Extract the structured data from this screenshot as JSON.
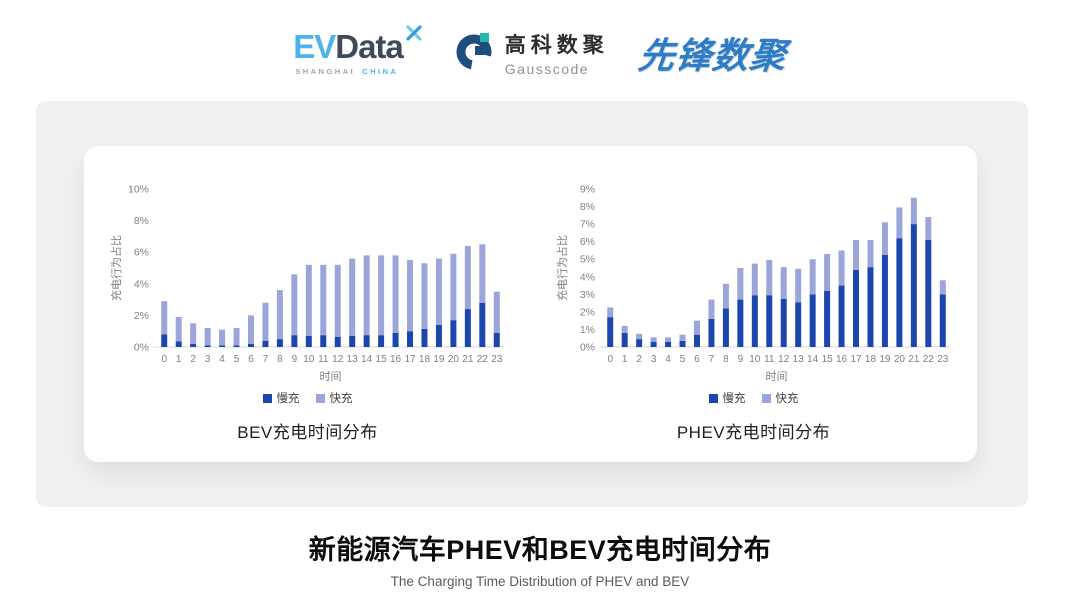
{
  "header": {
    "evdata": {
      "part1": "EV",
      "part2": "Data",
      "sub1": "SHANGHAI",
      "sub2": "CHINA"
    },
    "gausscode": {
      "cn": "高科数聚",
      "en": "Gausscode"
    },
    "pioneer": {
      "text": "先锋数聚"
    }
  },
  "chart_data": [
    {
      "type": "bar",
      "stacked": true,
      "title": "BEV充电时间分布",
      "xlabel": "时间",
      "ylabel": "充电行为占比",
      "ylim": [
        0,
        10
      ],
      "ytick_step": 2,
      "grid": false,
      "legend_position": "bottom",
      "categories": [
        "0",
        "1",
        "2",
        "3",
        "4",
        "5",
        "6",
        "7",
        "8",
        "9",
        "10",
        "11",
        "12",
        "13",
        "14",
        "15",
        "16",
        "17",
        "18",
        "19",
        "20",
        "21",
        "22",
        "23"
      ],
      "series": [
        {
          "name": "慢充",
          "color": "#1b46ae",
          "values": [
            0.8,
            0.35,
            0.2,
            0.1,
            0.1,
            0.1,
            0.2,
            0.4,
            0.5,
            0.75,
            0.7,
            0.75,
            0.65,
            0.7,
            0.75,
            0.75,
            0.9,
            1.0,
            1.15,
            1.4,
            1.7,
            2.4,
            2.8,
            0.9
          ]
        },
        {
          "name": "快充",
          "color": "#9ba5d9",
          "values": [
            2.1,
            1.55,
            1.3,
            1.1,
            1.0,
            1.1,
            1.8,
            2.4,
            3.1,
            3.85,
            4.5,
            4.45,
            4.55,
            4.9,
            5.05,
            5.05,
            4.9,
            4.5,
            4.15,
            4.2,
            4.2,
            4.0,
            3.7,
            2.6
          ]
        }
      ]
    },
    {
      "type": "bar",
      "stacked": true,
      "title": "PHEV充电时间分布",
      "xlabel": "时间",
      "ylabel": "充电行为占比",
      "ylim": [
        0,
        9
      ],
      "ytick_step": 1,
      "grid": false,
      "legend_position": "bottom",
      "categories": [
        "0",
        "1",
        "2",
        "3",
        "4",
        "5",
        "6",
        "7",
        "8",
        "9",
        "10",
        "11",
        "12",
        "13",
        "14",
        "15",
        "16",
        "17",
        "18",
        "19",
        "20",
        "21",
        "22",
        "23"
      ],
      "series": [
        {
          "name": "慢充",
          "color": "#1b46ae",
          "values": [
            1.7,
            0.8,
            0.45,
            0.3,
            0.3,
            0.35,
            0.7,
            1.6,
            2.2,
            2.7,
            2.95,
            2.95,
            2.75,
            2.55,
            3.0,
            3.2,
            3.5,
            4.4,
            4.55,
            5.25,
            6.2,
            7.0,
            6.1,
            3.0
          ]
        },
        {
          "name": "快充",
          "color": "#9ba5d9",
          "values": [
            0.55,
            0.4,
            0.3,
            0.25,
            0.25,
            0.35,
            0.8,
            1.1,
            1.4,
            1.8,
            1.8,
            2.0,
            1.8,
            1.9,
            2.0,
            2.1,
            2.0,
            1.7,
            1.55,
            1.85,
            1.75,
            1.5,
            1.3,
            0.8
          ]
        }
      ]
    }
  ],
  "footer": {
    "title": "新能源汽车PHEV和BEV充电时间分布",
    "subtitle": "The Charging Time Distribution of PHEV and BEV"
  },
  "colors": {
    "slow": "#1b46ae",
    "fast": "#9ba5d9",
    "axis_text": "#7f7f7f",
    "baseline": "#d9d9d9",
    "panel_bg": "#f1f1f2",
    "card_bg": "#ffffff"
  }
}
